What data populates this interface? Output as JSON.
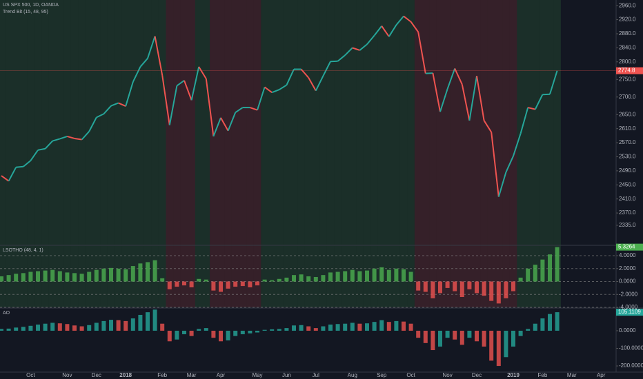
{
  "chart_data": [
    {
      "type": "line",
      "title": "US SPX 500, 1D, OANDA",
      "subtitle": "Trend Bit (15, 48, 95)",
      "categories": [
        null,
        null,
        null,
        null,
        "Oct",
        null,
        null,
        null,
        null,
        "Nov",
        null,
        null,
        null,
        "Dec",
        null,
        null,
        null,
        "2018",
        null,
        null,
        null,
        null,
        "Feb",
        null,
        null,
        null,
        "Mar",
        null,
        null,
        null,
        "Apr",
        null,
        null,
        null,
        null,
        "May",
        null,
        null,
        null,
        "Jun",
        null,
        null,
        null,
        "Jul",
        null,
        null,
        null,
        null,
        "Aug",
        null,
        null,
        null,
        "Sep",
        null,
        null,
        null,
        "Oct",
        null,
        null,
        null,
        null,
        "Nov",
        null,
        null,
        null,
        "Dec",
        null,
        null,
        null,
        null,
        "2019",
        null,
        null,
        null,
        "Feb",
        null,
        null,
        null,
        "Mar",
        null,
        null,
        null,
        "Apr",
        null
      ],
      "values": [
        2476,
        2461,
        2500,
        2502,
        2519,
        2549,
        2553,
        2575,
        2581,
        2588,
        2582,
        2579,
        2602,
        2642,
        2652,
        2675,
        2683,
        2674,
        2743,
        2786,
        2810,
        2873,
        2762,
        2620,
        2732,
        2747,
        2691,
        2786,
        2752,
        2588,
        2641,
        2604,
        2656,
        2670,
        2670,
        2663,
        2728,
        2713,
        2721,
        2734,
        2779,
        2779,
        2755,
        2718,
        2760,
        2801,
        2802,
        2819,
        2840,
        2833,
        2850,
        2875,
        2902,
        2872,
        2905,
        2930,
        2914,
        2885,
        2767,
        2768,
        2658,
        2723,
        2781,
        2736,
        2633,
        2760,
        2633,
        2600,
        2416,
        2486,
        2532,
        2596,
        2670,
        2665,
        2707,
        2708,
        2774.8,
        null,
        null,
        null,
        null,
        null,
        null,
        null
      ],
      "up_color": "#26a69a",
      "down_color": "#ef5350",
      "ylim": [
        2280,
        2976
      ],
      "yticks": [
        {
          "value": 2960,
          "label": "2960.0"
        },
        {
          "value": 2920,
          "label": "2920.0"
        },
        {
          "value": 2880,
          "label": "2880.0"
        },
        {
          "value": 2840,
          "label": "2840.0"
        },
        {
          "value": 2800,
          "label": "2800.0"
        },
        {
          "value": 2750,
          "label": "2750.0"
        },
        {
          "value": 2700,
          "label": "2700.0"
        },
        {
          "value": 2650,
          "label": "2650.0"
        },
        {
          "value": 2610,
          "label": "2610.0"
        },
        {
          "value": 2570,
          "label": "2570.0"
        },
        {
          "value": 2530,
          "label": "2530.0"
        },
        {
          "value": 2490,
          "label": "2490.0"
        },
        {
          "value": 2450,
          "label": "2450.0"
        },
        {
          "value": 2410,
          "label": "2410.0"
        },
        {
          "value": 2370,
          "label": "2370.0"
        },
        {
          "value": 2335,
          "label": "2335.0"
        }
      ],
      "grid": false
    },
    {
      "type": "bar",
      "title": "LSOTHO (48, 4, 1)",
      "values": [
        0.8,
        1.0,
        1.2,
        1.3,
        1.5,
        1.6,
        1.7,
        1.8,
        1.6,
        1.4,
        1.3,
        1.2,
        1.5,
        1.8,
        2.0,
        2.1,
        2.0,
        1.9,
        2.4,
        2.8,
        3.0,
        3.3,
        0.5,
        -1.2,
        -0.8,
        -0.6,
        -0.9,
        0.4,
        0.3,
        -1.4,
        -1.6,
        -1.1,
        -0.8,
        -0.7,
        -0.9,
        -0.6,
        0.3,
        0.2,
        0.4,
        0.6,
        1.0,
        1.1,
        0.8,
        0.7,
        1.0,
        1.4,
        1.5,
        1.6,
        1.8,
        1.6,
        1.7,
        2.0,
        2.2,
        1.8,
        2.0,
        1.9,
        1.5,
        -1.4,
        -1.6,
        -2.6,
        -1.8,
        -1.0,
        -1.5,
        -2.4,
        -1.2,
        -1.8,
        -2.2,
        -3.0,
        -3.4,
        -2.6,
        -1.5,
        0.6,
        2.0,
        2.6,
        3.4,
        4.2,
        5.3264
      ],
      "up_color": "#4caf50",
      "down_color": "#ef5350",
      "shading": true,
      "ylim": [
        -4,
        5.5
      ],
      "yticks": [
        {
          "value": 4,
          "label": "4.0000"
        },
        {
          "value": 2,
          "label": "2.0000"
        },
        {
          "value": 0,
          "label": "0.0000"
        },
        {
          "value": -2,
          "label": "-2.0000"
        },
        {
          "value": -4,
          "label": "-4.0000"
        }
      ],
      "grid": true
    },
    {
      "type": "bar",
      "title": "AO",
      "values": [
        10,
        12,
        18,
        22,
        28,
        35,
        40,
        45,
        42,
        38,
        30,
        25,
        32,
        45,
        55,
        62,
        60,
        55,
        70,
        90,
        105,
        120,
        40,
        -60,
        -50,
        -20,
        -30,
        10,
        15,
        -40,
        -60,
        -55,
        -30,
        -20,
        -15,
        -10,
        5,
        8,
        10,
        15,
        30,
        32,
        25,
        15,
        25,
        35,
        38,
        40,
        45,
        40,
        42,
        50,
        60,
        50,
        55,
        52,
        40,
        -40,
        -70,
        -110,
        -90,
        -40,
        -50,
        -80,
        -40,
        -60,
        -90,
        -170,
        -200,
        -150,
        -90,
        -30,
        10,
        40,
        70,
        95,
        105.1109
      ],
      "up_color": "#26a69a",
      "down_color": "#ef5350",
      "ylim": [
        -235,
        125
      ],
      "yticks": [
        {
          "value": 0,
          "label": "0.0000"
        },
        {
          "value": -100,
          "label": "-100.0000"
        },
        {
          "value": -200,
          "label": "-200.0000"
        }
      ],
      "grid": false
    }
  ]
}
